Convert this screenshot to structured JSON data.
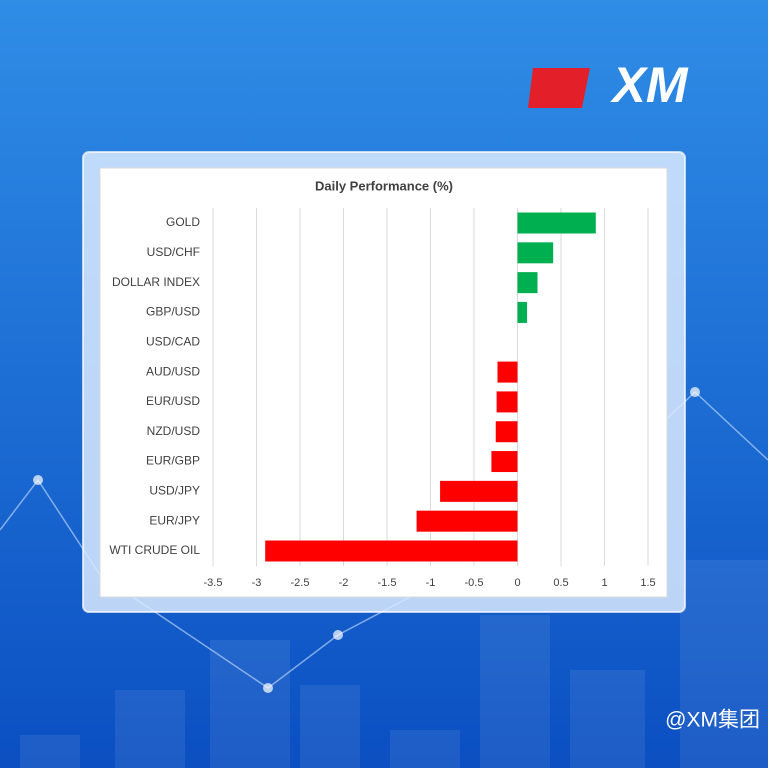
{
  "brand": "XM",
  "watermark": "@XM集团",
  "chart_data": {
    "type": "bar",
    "orientation": "horizontal",
    "title": "Daily Performance (%)",
    "categories": [
      "GOLD",
      "USD/CHF",
      "DOLLAR INDEX",
      "GBP/USD",
      "USD/CAD",
      "AUD/USD",
      "EUR/USD",
      "NZD/USD",
      "EUR/GBP",
      "USD/JPY",
      "EUR/JPY",
      "WTI CRUDE OIL"
    ],
    "values": [
      0.9,
      0.41,
      0.23,
      0.11,
      0,
      -0.23,
      -0.24,
      -0.25,
      -0.3,
      -0.89,
      -1.16,
      -2.9
    ],
    "positive_color": "#00b050",
    "negative_color": "#ff0000",
    "xlim": [
      -3.5,
      1.5
    ],
    "xticks": [
      -3.5,
      -3,
      -2.5,
      -2,
      -1.5,
      -1,
      -0.5,
      0,
      0.5,
      1,
      1.5
    ],
    "grid": true
  }
}
